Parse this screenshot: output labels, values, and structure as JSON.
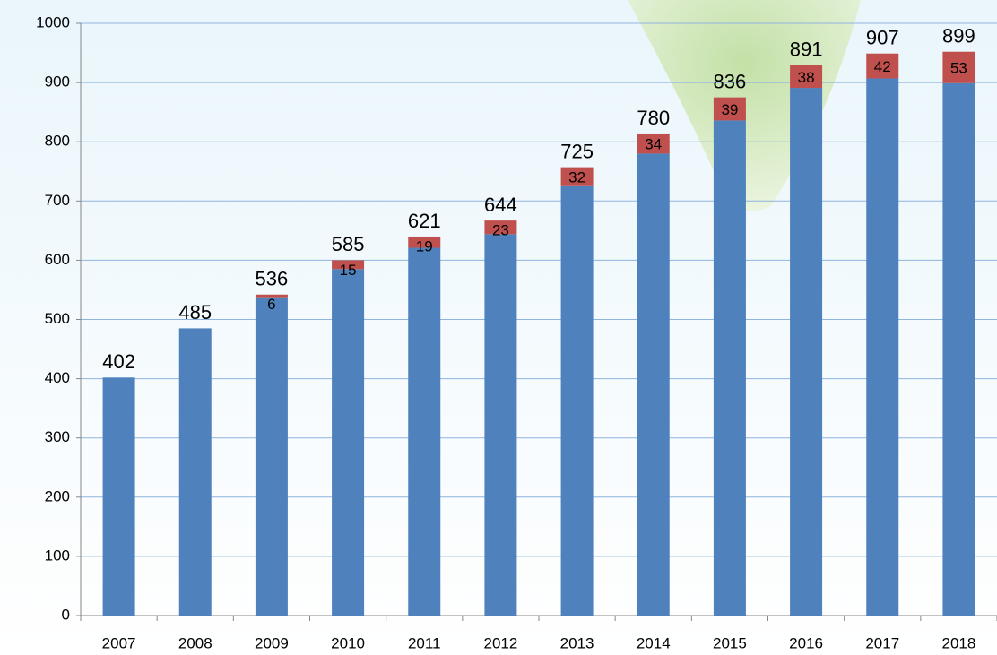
{
  "chart_data": {
    "type": "stacked-bar",
    "categories": [
      "2007",
      "2008",
      "2009",
      "2010",
      "2011",
      "2012",
      "2013",
      "2014",
      "2015",
      "2016",
      "2017",
      "2018"
    ],
    "series": [
      {
        "color": "#4f81bd",
        "values": [
          402,
          485,
          536,
          585,
          621,
          644,
          725,
          780,
          836,
          891,
          907,
          899
        ]
      },
      {
        "color": "#c0504d",
        "values": [
          null,
          null,
          6,
          15,
          19,
          23,
          32,
          34,
          39,
          38,
          42,
          53
        ]
      }
    ],
    "ylim": [
      0,
      1000
    ],
    "yticks": [
      0,
      100,
      200,
      300,
      400,
      500,
      600,
      700,
      800,
      900,
      1000
    ],
    "grid": true
  }
}
